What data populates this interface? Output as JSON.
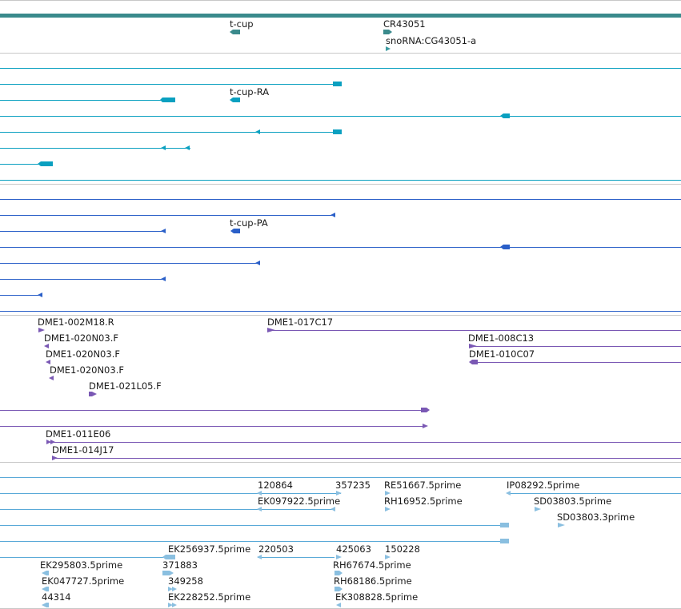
{
  "colors": {
    "top_bar": "#3a8a8c",
    "separator": "#c8c8c8",
    "gene": "#3a8a8c",
    "snorna": "#3a9aa0",
    "transcript": "#0aa0c0",
    "protein": "#2a5fc8",
    "clone": "#7a58b4",
    "est": "#8abfe0",
    "est_line": "#5aaad8"
  },
  "tracks": {
    "gene": {
      "features": [
        {
          "id": "t-cup",
          "label": "t-cup"
        },
        {
          "id": "CR43051",
          "label": "CR43051"
        },
        {
          "id": "snoRNA",
          "label": "snoRNA:CG43051-a"
        }
      ]
    },
    "transcripts": {
      "labels": [
        "t-cup-RA"
      ]
    },
    "proteins": {
      "labels": [
        "t-cup-PA"
      ]
    },
    "clones": {
      "labels": [
        "DME1-002M18.R",
        "DME1-017C17",
        "DME1-020N03.F",
        "DME1-008C13",
        "DME1-020N03.F",
        "DME1-010C07",
        "DME1-020N03.F",
        "DME1-021L05.F",
        "DME1-011E06",
        "DME1-014J17"
      ]
    },
    "ests": {
      "labels": [
        "120864",
        "357235",
        "RE51667.5prime",
        "IP08292.5prime",
        "EK097922.5prime",
        "RH16952.5prime",
        "SD03803.5prime",
        "SD03803.3prime",
        "EK256937.5prime",
        "220503",
        "425063",
        "150228",
        "EK295803.5prime",
        "371883",
        "RH67674.5prime",
        "EK047727.5prime",
        "349258",
        "RH68186.5prime",
        "44314",
        "EK228252.5prime",
        "EK308828.5prime"
      ]
    }
  }
}
